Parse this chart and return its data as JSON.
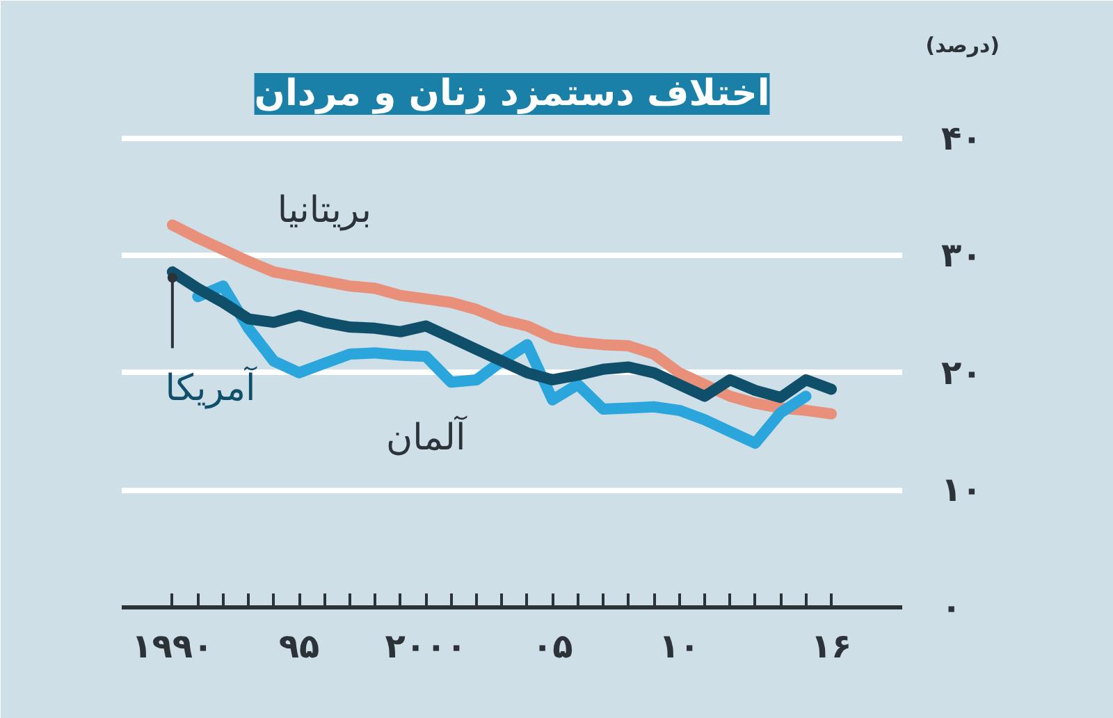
{
  "chart_data": {
    "type": "line",
    "title": "اختلاف دستمزد زنان و مردان",
    "ylabel": "(درصد)",
    "xlim": [
      1988,
      2018.8
    ],
    "ylim": [
      0,
      42
    ],
    "xticks": [
      {
        "value": 1990,
        "label": "۱۹۹۰"
      },
      {
        "value": 1991,
        "label": null
      },
      {
        "value": 1992,
        "label": null
      },
      {
        "value": 1993,
        "label": null
      },
      {
        "value": 1994,
        "label": null
      },
      {
        "value": 1995,
        "label": "۹۵"
      },
      {
        "value": 1996,
        "label": null
      },
      {
        "value": 1997,
        "label": null
      },
      {
        "value": 1998,
        "label": null
      },
      {
        "value": 1999,
        "label": null
      },
      {
        "value": 2000,
        "label": "۲۰۰۰"
      },
      {
        "value": 2001,
        "label": null
      },
      {
        "value": 2002,
        "label": null
      },
      {
        "value": 2003,
        "label": null
      },
      {
        "value": 2004,
        "label": null
      },
      {
        "value": 2005,
        "label": "۰۵"
      },
      {
        "value": 2006,
        "label": null
      },
      {
        "value": 2007,
        "label": null
      },
      {
        "value": 2008,
        "label": null
      },
      {
        "value": 2009,
        "label": null
      },
      {
        "value": 2010,
        "label": "۱۰"
      },
      {
        "value": 2011,
        "label": null
      },
      {
        "value": 2012,
        "label": null
      },
      {
        "value": 2013,
        "label": null
      },
      {
        "value": 2014,
        "label": null
      },
      {
        "value": 2015,
        "label": null
      },
      {
        "value": 2016,
        "label": "۱۶"
      }
    ],
    "yticks": [
      {
        "value": 0,
        "label": "۰"
      },
      {
        "value": 10,
        "label": "۱۰"
      },
      {
        "value": 20,
        "label": "۲۰"
      },
      {
        "value": 30,
        "label": "۳۰"
      },
      {
        "value": 40,
        "label": "۴۰"
      }
    ],
    "grid": "y",
    "legend": false,
    "series": [
      {
        "name": "بریتانیا",
        "color": "#e8907a",
        "x": [
          1990,
          1991,
          1992,
          1993,
          1994,
          1995,
          1996,
          1997,
          1998,
          1999,
          2000,
          2001,
          2002,
          2003,
          2004,
          2005,
          2006,
          2007,
          2008,
          2009,
          2010,
          2011,
          2012,
          2013,
          2014,
          2015,
          2016
        ],
        "values": [
          32.6,
          31.5,
          30.5,
          29.5,
          28.6,
          28.2,
          27.8,
          27.4,
          27.2,
          26.6,
          26.3,
          26.0,
          25.4,
          24.5,
          24.0,
          23.0,
          22.6,
          22.4,
          22.3,
          21.6,
          20.0,
          19.0,
          18.0,
          17.4,
          17.0,
          16.8,
          16.5
        ]
      },
      {
        "name": "آلمان",
        "color": "#2aa6dc",
        "x": [
          1991,
          1992,
          1993,
          1994,
          1995,
          1996,
          1997,
          1998,
          1999,
          2000,
          2001,
          2002,
          2003,
          2004,
          2005,
          2006,
          2007,
          2008,
          2009,
          2010,
          2011,
          2012,
          2013,
          2014,
          2015
        ],
        "values": [
          26.5,
          27.4,
          23.8,
          21.0,
          20.0,
          20.8,
          21.6,
          21.7,
          21.5,
          21.4,
          19.2,
          19.4,
          21.0,
          22.4,
          17.7,
          19.0,
          16.9,
          17.0,
          17.1,
          16.8,
          16.0,
          15.0,
          14.0,
          16.6,
          18.0
        ]
      },
      {
        "name": "آمریکا",
        "color": "#0f4f6a",
        "x": [
          1990,
          1991,
          1992,
          1993,
          1994,
          1995,
          1996,
          1997,
          1998,
          1999,
          2000,
          2001,
          2002,
          2003,
          2004,
          2005,
          2006,
          2007,
          2008,
          2009,
          2010,
          2011,
          2012,
          2013,
          2014,
          2015,
          2016
        ],
        "values": [
          28.6,
          27.2,
          26.0,
          24.6,
          24.3,
          24.9,
          24.3,
          23.9,
          23.8,
          23.5,
          24.0,
          23.0,
          22.0,
          21.0,
          20.0,
          19.4,
          19.8,
          20.3,
          20.5,
          20.0,
          19.0,
          18.0,
          19.4,
          18.5,
          17.9,
          19.4,
          18.6
        ]
      }
    ]
  }
}
